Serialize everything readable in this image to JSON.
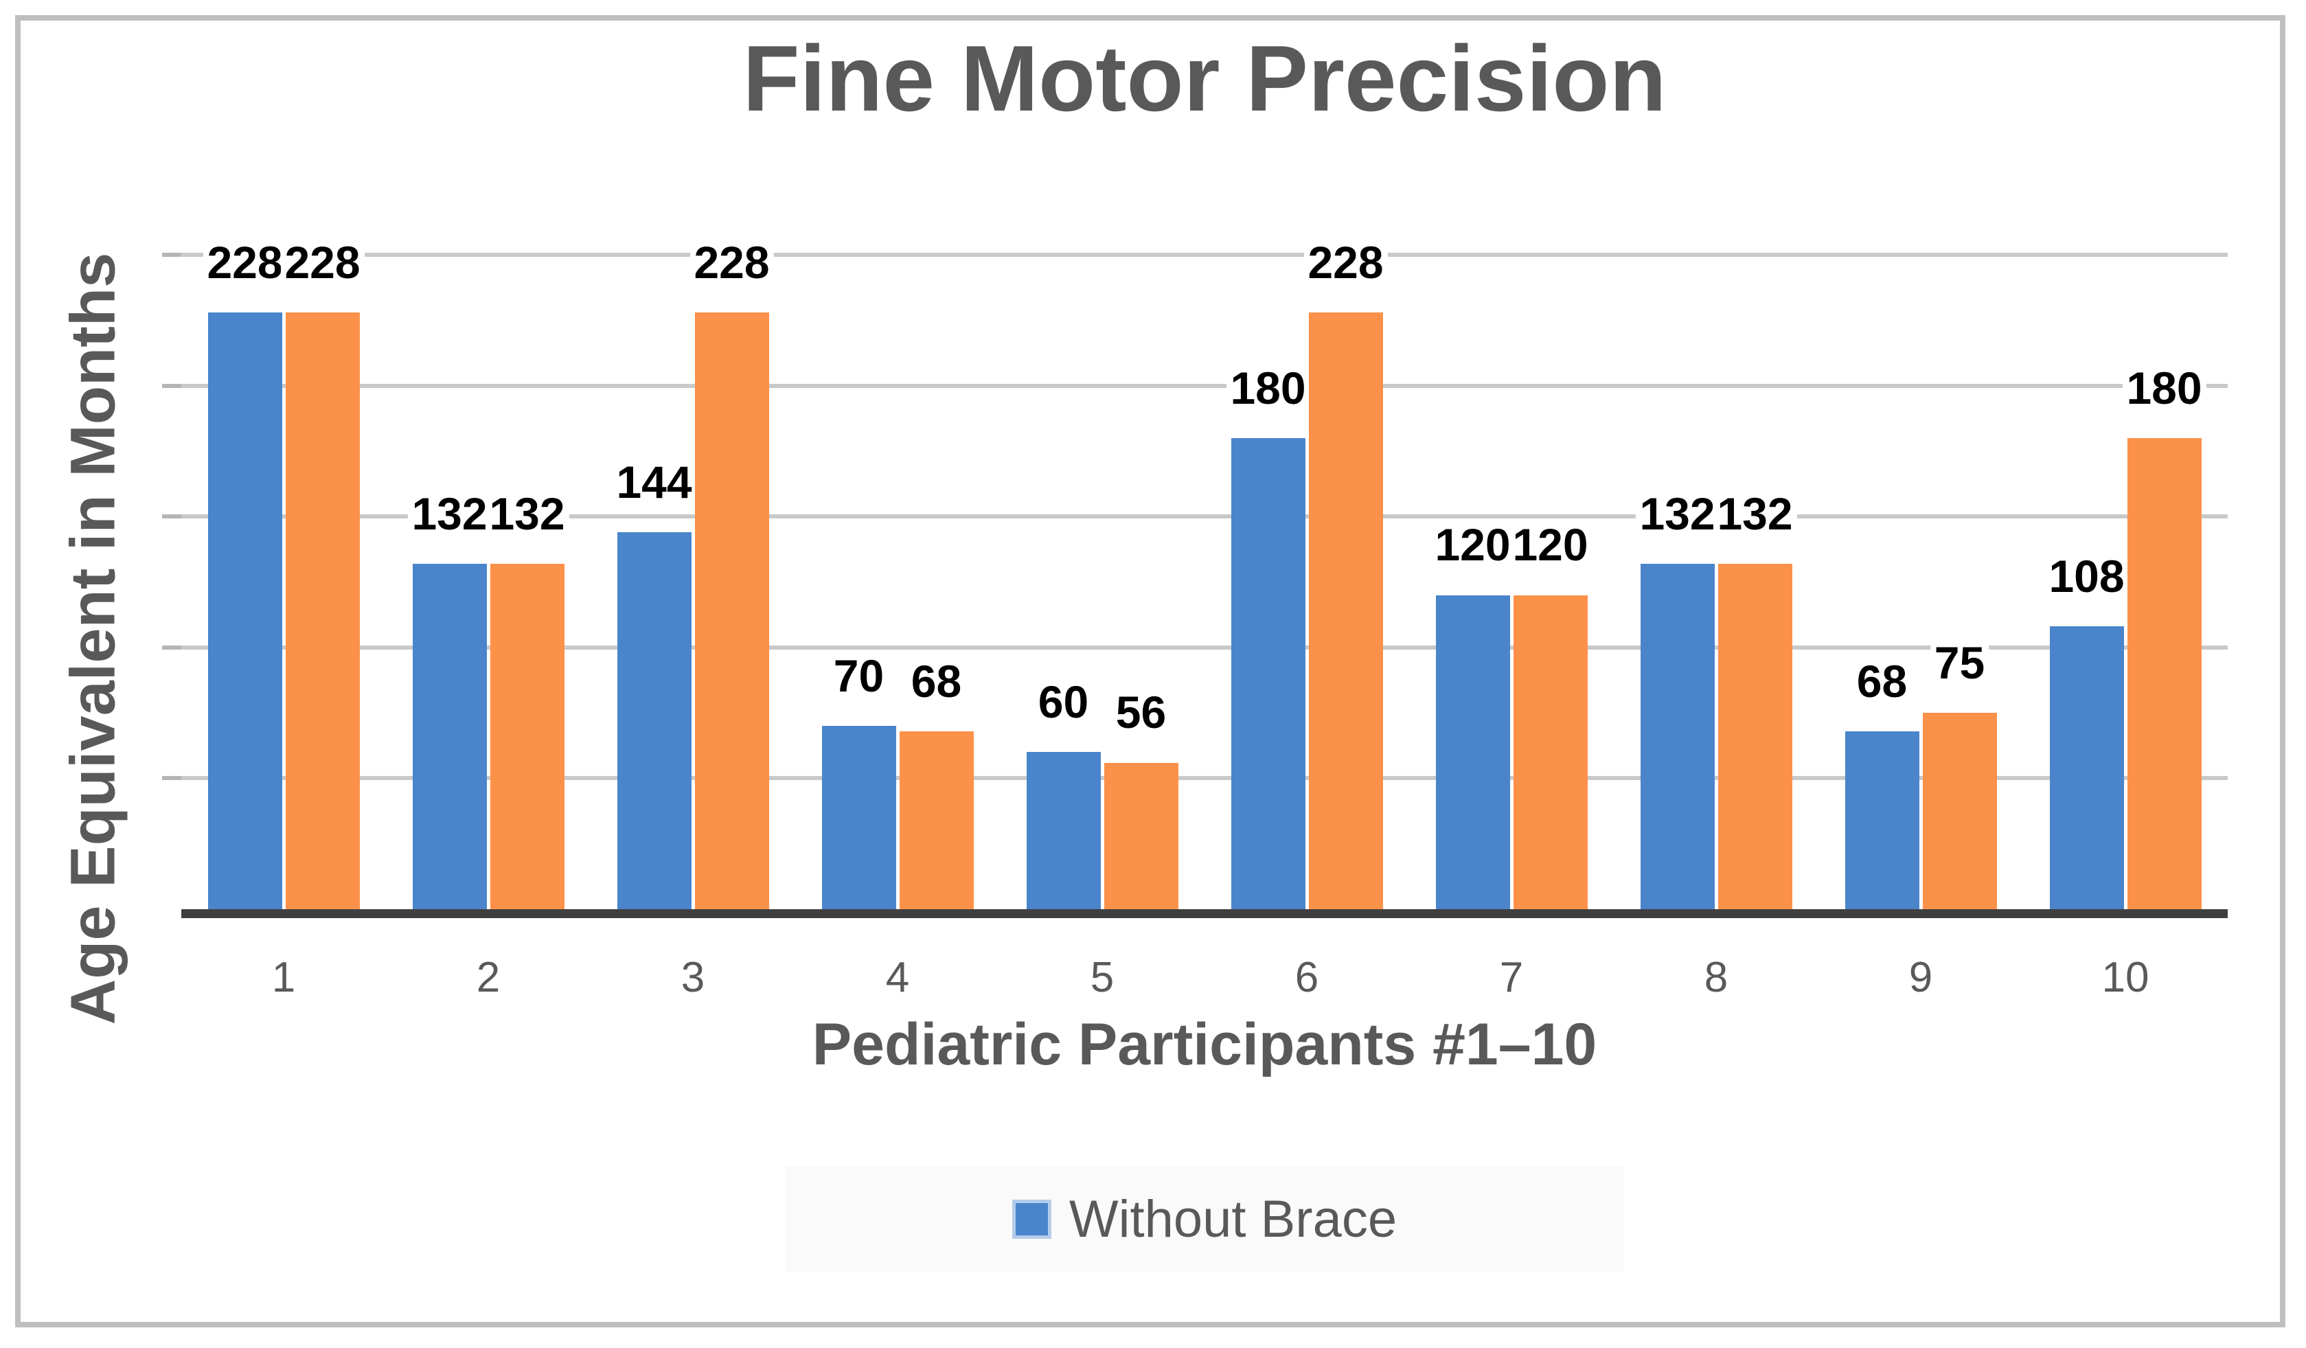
{
  "chart_data": {
    "type": "bar",
    "title": "Fine Motor Precision",
    "xlabel": "Pediatric Participants #1–10",
    "ylabel": "Age Equivalent in Months",
    "categories": [
      "1",
      "2",
      "3",
      "4",
      "5",
      "6",
      "7",
      "8",
      "9",
      "10"
    ],
    "series": [
      {
        "name": "Without Brace",
        "color": "#4A85CB",
        "values": [
          228,
          132,
          144,
          70,
          60,
          180,
          120,
          132,
          68,
          108
        ]
      },
      {
        "name": "",
        "color": "#FC9149",
        "values": [
          228,
          132,
          228,
          68,
          56,
          228,
          120,
          132,
          75,
          180
        ]
      }
    ],
    "data_labels": [
      [
        "228",
        "132",
        "144",
        "70",
        "60",
        "180",
        "120",
        "132",
        "68",
        "108"
      ],
      [
        "228",
        "132",
        "228",
        "68",
        "56",
        "228",
        "120",
        "132",
        "75",
        "180"
      ]
    ],
    "ylim": [
      0,
      250
    ],
    "gridline_interval": 50,
    "gridline_values": [
      50,
      100,
      150,
      200,
      250
    ],
    "grid": "horizontal",
    "y_tick_labels_shown": false,
    "legend_position": "bottom",
    "legend": {
      "items": [
        {
          "label": "Without Brace",
          "color": "#4A85CB"
        }
      ]
    }
  },
  "colors": {
    "series1_blue": "#4A85CB",
    "series2_orange": "#FC9149",
    "text_gray": "#595959",
    "data_label_black": "#000000",
    "axis_line": "#3F3F3F",
    "gridline": "#C9C9C9",
    "border_frame": "#BFBFBF",
    "legend_background": "#FAFAFA"
  }
}
